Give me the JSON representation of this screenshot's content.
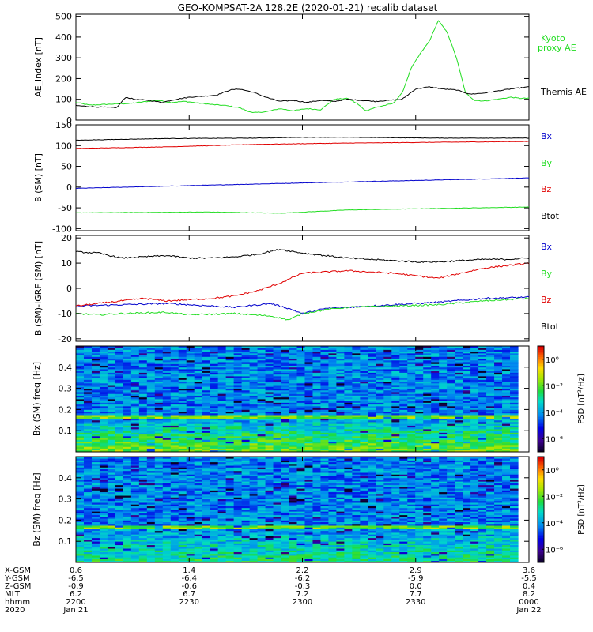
{
  "title": "GEO-KOMPSAT-2A 128.2E (2020-01-21) recalib dataset",
  "colors": {
    "black": "#000000",
    "red": "#e00000",
    "green": "#22dd22",
    "blue": "#0000cc"
  },
  "chart_data": [
    {
      "type": "line",
      "panel": "ae",
      "ylabel": "AE_index [nT]",
      "ylim": [
        0,
        510
      ],
      "yticks": [
        "0",
        "100",
        "200",
        "300",
        "400",
        "500"
      ],
      "ytick_values": [
        0,
        100,
        200,
        300,
        400,
        500
      ],
      "xlim": [
        0,
        1
      ],
      "series": [
        {
          "name": "Kyoto proxy AE",
          "label_lines": [
            "Kyoto",
            "proxy AE"
          ],
          "color": "#22dd22",
          "x": [
            0,
            0.03,
            0.06,
            0.09,
            0.12,
            0.15,
            0.18,
            0.21,
            0.24,
            0.27,
            0.3,
            0.33,
            0.36,
            0.39,
            0.42,
            0.45,
            0.48,
            0.51,
            0.54,
            0.57,
            0.6,
            0.62,
            0.64,
            0.66,
            0.68,
            0.7,
            0.72,
            0.74,
            0.76,
            0.78,
            0.8,
            0.82,
            0.84,
            0.86,
            0.88,
            0.9,
            0.93,
            0.96,
            0.98,
            1.0
          ],
          "y": [
            85,
            72,
            75,
            78,
            80,
            88,
            95,
            85,
            90,
            82,
            75,
            70,
            60,
            35,
            40,
            55,
            45,
            55,
            50,
            100,
            105,
            80,
            45,
            60,
            70,
            80,
            130,
            250,
            320,
            380,
            480,
            420,
            300,
            130,
            95,
            92,
            100,
            110,
            105,
            105
          ]
        },
        {
          "name": "Themis AE",
          "label_lines": [
            "Themis AE"
          ],
          "color": "#000000",
          "x": [
            0,
            0.03,
            0.06,
            0.09,
            0.11,
            0.13,
            0.16,
            0.19,
            0.22,
            0.25,
            0.28,
            0.31,
            0.34,
            0.36,
            0.39,
            0.42,
            0.45,
            0.48,
            0.51,
            0.54,
            0.57,
            0.6,
            0.63,
            0.66,
            0.69,
            0.72,
            0.75,
            0.78,
            0.81,
            0.84,
            0.87,
            0.9,
            0.93,
            0.96,
            1.0
          ],
          "y": [
            70,
            65,
            62,
            60,
            110,
            100,
            95,
            85,
            100,
            110,
            115,
            120,
            145,
            150,
            135,
            110,
            90,
            95,
            85,
            95,
            90,
            100,
            95,
            90,
            95,
            100,
            150,
            160,
            150,
            145,
            125,
            130,
            140,
            150,
            160
          ]
        }
      ]
    },
    {
      "type": "line",
      "panel": "bsm",
      "ylabel": "B (SM) [nT]",
      "ylim": [
        -105,
        150
      ],
      "yticks": [
        "-100",
        "-50",
        "0",
        "50",
        "100",
        "150"
      ],
      "ytick_values": [
        -100,
        -50,
        0,
        50,
        100,
        150
      ],
      "xlim": [
        0,
        1
      ],
      "series": [
        {
          "name": "Bx",
          "color": "#0000cc",
          "x": [
            0,
            0.5,
            1
          ],
          "y": [
            -3,
            10,
            22
          ]
        },
        {
          "name": "By",
          "color": "#22dd22",
          "x": [
            0,
            0.3,
            0.45,
            0.6,
            1
          ],
          "y": [
            -62,
            -60,
            -63,
            -55,
            -48
          ]
        },
        {
          "name": "Bz",
          "color": "#e00000",
          "x": [
            0,
            0.2,
            0.4,
            0.6,
            0.8,
            1
          ],
          "y": [
            93,
            97,
            103,
            106,
            108,
            110
          ]
        },
        {
          "name": "Btot",
          "color": "#000000",
          "x": [
            0,
            0.2,
            0.4,
            0.5,
            0.6,
            0.8,
            1
          ],
          "y": [
            113,
            117,
            118,
            120,
            120,
            118,
            118
          ]
        }
      ]
    },
    {
      "type": "line",
      "panel": "bigrf",
      "ylabel": "B (SM)-IGRF (SM) [nT]",
      "ylim": [
        -21,
        21
      ],
      "yticks": [
        "-20",
        "-10",
        "0",
        "10",
        "20"
      ],
      "ytick_values": [
        -20,
        -10,
        0,
        10,
        20
      ],
      "xlim": [
        0,
        1
      ],
      "series": [
        {
          "name": "Bx",
          "color": "#0000cc",
          "x": [
            0,
            0.1,
            0.2,
            0.3,
            0.35,
            0.43,
            0.47,
            0.5,
            0.55,
            0.6,
            0.7,
            0.8,
            0.9,
            1.0
          ],
          "y": [
            -7,
            -6.5,
            -6,
            -7,
            -7.5,
            -6,
            -8,
            -10,
            -8,
            -7.5,
            -6.5,
            -5.5,
            -4,
            -3.5
          ]
        },
        {
          "name": "By",
          "color": "#22dd22",
          "x": [
            0,
            0.05,
            0.1,
            0.2,
            0.25,
            0.35,
            0.43,
            0.47,
            0.5,
            0.55,
            0.6,
            0.7,
            0.8,
            0.9,
            1.0
          ],
          "y": [
            -10,
            -10.5,
            -10,
            -9.5,
            -10.5,
            -10,
            -11,
            -12.5,
            -10,
            -8.5,
            -7.5,
            -7,
            -6.5,
            -5,
            -4
          ]
        },
        {
          "name": "Bz",
          "color": "#e00000",
          "x": [
            0,
            0.1,
            0.15,
            0.2,
            0.3,
            0.35,
            0.4,
            0.45,
            0.5,
            0.55,
            0.6,
            0.65,
            0.7,
            0.75,
            0.8,
            0.85,
            0.9,
            1.0
          ],
          "y": [
            -7,
            -5,
            -4,
            -5,
            -4,
            -3,
            -1,
            2,
            6,
            6.5,
            7,
            6.5,
            6,
            5,
            4,
            6,
            8,
            10
          ]
        },
        {
          "name": "Btot",
          "color": "#000000",
          "x": [
            0,
            0.05,
            0.1,
            0.15,
            0.2,
            0.25,
            0.3,
            0.35,
            0.4,
            0.45,
            0.5,
            0.55,
            0.6,
            0.65,
            0.7,
            0.75,
            0.8,
            0.85,
            0.9,
            0.95,
            1.0
          ],
          "y": [
            14.5,
            14,
            12,
            12.5,
            13,
            12,
            12,
            12.5,
            13.5,
            15.5,
            14,
            13,
            12,
            11.5,
            11,
            10.5,
            10.5,
            11,
            11.5,
            11.5,
            12
          ]
        }
      ]
    },
    {
      "type": "heatmap",
      "panel": "bxspec",
      "ylabel": "Bx (SM) freq [Hz]",
      "ylim": [
        0,
        0.5
      ],
      "yticks": [
        "0.1",
        "0.2",
        "0.3",
        "0.4"
      ],
      "ytick_values": [
        0.1,
        0.2,
        0.3,
        0.4
      ],
      "colorbar_label": "PSD [nT²/Hz]",
      "colorbar_ticks": [
        "10⁰",
        "10⁻²",
        "10⁻⁴",
        "10⁻⁶"
      ],
      "colorbar_log_values": [
        0,
        -2,
        -4,
        -6
      ],
      "colorbar_range": [
        -7,
        1
      ],
      "low_freq_band_level": -2
    },
    {
      "type": "heatmap",
      "panel": "bzspec",
      "ylabel": "Bz (SM) freq [Hz]",
      "ylim": [
        0,
        0.5
      ],
      "yticks": [
        "0.1",
        "0.2",
        "0.3",
        "0.4"
      ],
      "ytick_values": [
        0.1,
        0.2,
        0.3,
        0.4
      ],
      "colorbar_label": "PSD [nT²/Hz]",
      "colorbar_ticks": [
        "10⁰",
        "10⁻²",
        "10⁻⁴",
        "10⁻⁶"
      ],
      "colorbar_log_values": [
        0,
        -2,
        -4,
        -6
      ],
      "colorbar_range": [
        -7,
        1
      ],
      "low_freq_band_level": -3
    }
  ],
  "xaxis": {
    "labels": [
      "X-GSM",
      "Y-GSM",
      "Z-GSM",
      "MLT",
      "hhmm",
      "2020"
    ],
    "columns": [
      [
        "0.6",
        "-6.5",
        "-0.9",
        "6.2",
        "2200",
        "Jan 21"
      ],
      [
        "1.4",
        "-6.4",
        "-0.6",
        "6.7",
        "2230",
        ""
      ],
      [
        "2.2",
        "-6.2",
        "-0.3",
        "7.2",
        "2300",
        ""
      ],
      [
        "2.9",
        "-5.9",
        "0.0",
        "7.7",
        "2330",
        ""
      ],
      [
        "3.6",
        "-5.5",
        "0.4",
        "8.2",
        "0000",
        "Jan 22"
      ]
    ],
    "tick_fractions": [
      0,
      0.25,
      0.5,
      0.75,
      1
    ]
  }
}
